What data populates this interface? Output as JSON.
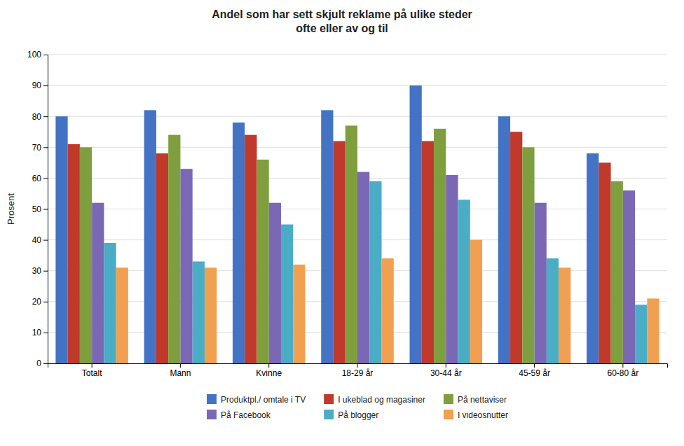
{
  "chart_data": {
    "type": "bar",
    "title": "Andel som har sett skjult reklame på ulike steder\nofte eller av og til",
    "ylabel": "Prosent",
    "categories": [
      "Totalt",
      "Mann",
      "Kvinne",
      "18-29 år",
      "30-44 år",
      "45-59 år",
      "60-80 år"
    ],
    "series": [
      {
        "name": "Produktpl./ omtale i TV",
        "color": "#4472C4",
        "values": [
          80,
          82,
          78,
          82,
          90,
          80,
          68
        ]
      },
      {
        "name": "I ukeblad og magasiner",
        "color": "#C0392B",
        "values": [
          71,
          68,
          74,
          72,
          72,
          75,
          65
        ]
      },
      {
        "name": "På nettaviser",
        "color": "#7F9F3F",
        "values": [
          70,
          74,
          66,
          77,
          76,
          70,
          59
        ]
      },
      {
        "name": "På Facebook",
        "color": "#7B68B5",
        "values": [
          52,
          63,
          52,
          62,
          61,
          52,
          56
        ]
      },
      {
        "name": "På blogger",
        "color": "#4BACC6",
        "values": [
          39,
          33,
          45,
          59,
          53,
          34,
          19
        ]
      },
      {
        "name": "I videosnutter",
        "color": "#F0A050",
        "values": [
          31,
          31,
          32,
          34,
          40,
          31,
          21
        ]
      }
    ],
    "ylim": [
      0,
      100
    ],
    "yticks": [
      0,
      10,
      20,
      30,
      40,
      50,
      60,
      70,
      80,
      90,
      100
    ],
    "grid": true,
    "legend": "bottom"
  }
}
